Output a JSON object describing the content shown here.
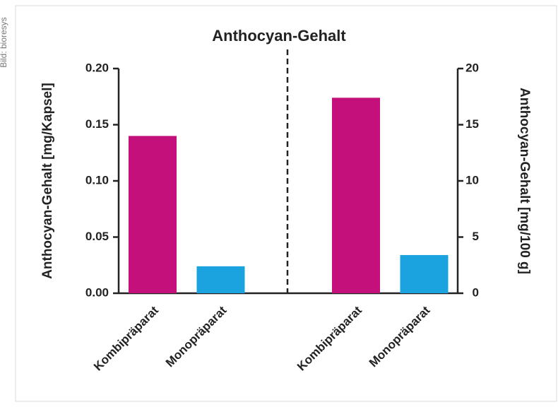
{
  "credit": "Bild: bioresys",
  "chart_data": {
    "type": "bar",
    "title": "Anthocyan-Gehalt",
    "y_label": "Anthocyan-Gehalt [mg/Kapsel]",
    "y2_label": "Anthocyan-Gehalt [mg/100 g]",
    "categories": [
      "Kombipräparat",
      "Monopräparat",
      "Kombipräparat",
      "Monopräparat"
    ],
    "values": [
      0.14,
      0.024,
      17.4,
      3.4
    ],
    "axes": [
      "y",
      "y",
      "y2",
      "y2"
    ],
    "colors": [
      "#c4107a",
      "#1ba3e0",
      "#c4107a",
      "#1ba3e0"
    ],
    "ylim": [
      0,
      0.2
    ],
    "yticks": [
      {
        "value": 0,
        "label": "0.00"
      },
      0.05,
      {
        "value": 0.1,
        "label": "0.10"
      },
      0.15,
      {
        "value": 0.2,
        "label": "0.20"
      }
    ],
    "y2lim": [
      0,
      20
    ],
    "y2ticks": [
      0,
      5,
      10,
      15,
      20
    ]
  }
}
